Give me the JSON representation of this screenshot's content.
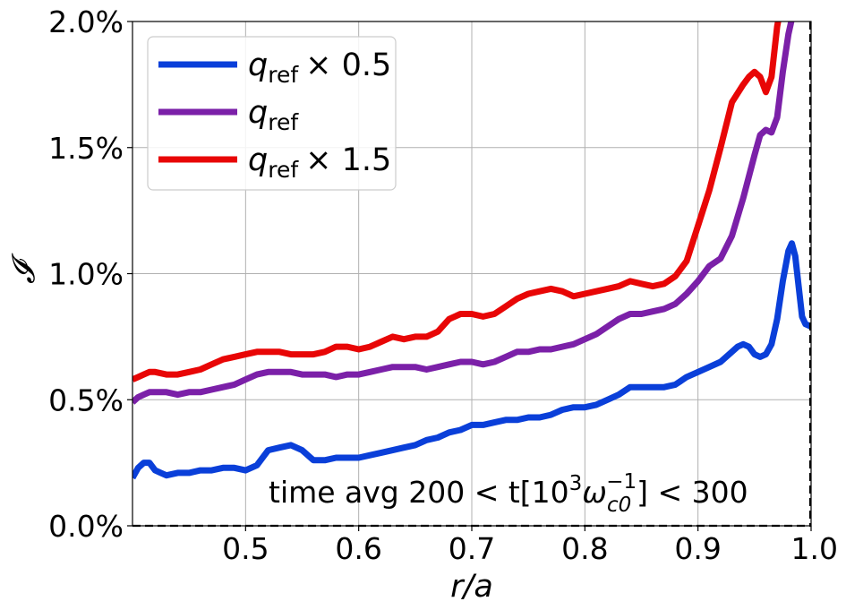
{
  "chart_data": {
    "type": "line",
    "xlabel": "r/a",
    "ylabel": "𝓘",
    "xlim": [
      0.4,
      1.0
    ],
    "ylim": [
      0.0,
      2.0
    ],
    "x_ticks": [
      "0.5",
      "0.6",
      "0.7",
      "0.8",
      "0.9",
      "1.0"
    ],
    "y_ticks": [
      "0.0%",
      "0.5%",
      "1.0%",
      "1.5%",
      "2.0%"
    ],
    "grid": true,
    "legend_position": "top-left",
    "annotation": {
      "prefix": "time avg 200 < t[10",
      "sup1": "3",
      "omega": "ω",
      "sub": "c0",
      "sup2": "−1",
      "suffix": "] < 300"
    },
    "series": [
      {
        "name": "q_ref × 0.5",
        "label_base": "q",
        "label_sub": "ref",
        "label_suffix": "× 0.5",
        "color": "#0a3fd9",
        "x": [
          0.4,
          0.405,
          0.41,
          0.415,
          0.42,
          0.425,
          0.43,
          0.44,
          0.45,
          0.46,
          0.47,
          0.48,
          0.49,
          0.5,
          0.51,
          0.52,
          0.53,
          0.54,
          0.55,
          0.56,
          0.57,
          0.58,
          0.59,
          0.6,
          0.61,
          0.62,
          0.63,
          0.64,
          0.65,
          0.66,
          0.67,
          0.68,
          0.69,
          0.7,
          0.71,
          0.72,
          0.73,
          0.74,
          0.75,
          0.76,
          0.77,
          0.78,
          0.79,
          0.8,
          0.81,
          0.82,
          0.83,
          0.84,
          0.85,
          0.86,
          0.87,
          0.88,
          0.89,
          0.9,
          0.91,
          0.92,
          0.93,
          0.935,
          0.94,
          0.945,
          0.95,
          0.955,
          0.96,
          0.965,
          0.97,
          0.975,
          0.98,
          0.983,
          0.986,
          0.989,
          0.992,
          0.995,
          1.0
        ],
        "y": [
          0.19,
          0.23,
          0.25,
          0.25,
          0.22,
          0.21,
          0.2,
          0.21,
          0.21,
          0.22,
          0.22,
          0.23,
          0.23,
          0.22,
          0.24,
          0.3,
          0.31,
          0.32,
          0.3,
          0.26,
          0.26,
          0.27,
          0.27,
          0.27,
          0.28,
          0.29,
          0.3,
          0.31,
          0.32,
          0.34,
          0.35,
          0.37,
          0.38,
          0.4,
          0.4,
          0.41,
          0.42,
          0.42,
          0.43,
          0.43,
          0.44,
          0.46,
          0.47,
          0.47,
          0.48,
          0.5,
          0.52,
          0.55,
          0.55,
          0.55,
          0.55,
          0.56,
          0.59,
          0.61,
          0.63,
          0.65,
          0.69,
          0.71,
          0.72,
          0.71,
          0.68,
          0.67,
          0.68,
          0.72,
          0.82,
          0.97,
          1.09,
          1.12,
          1.07,
          0.95,
          0.83,
          0.8,
          0.79
        ]
      },
      {
        "name": "q_ref",
        "label_base": "q",
        "label_sub": "ref",
        "label_suffix": "",
        "color": "#7b20a8",
        "x": [
          0.4,
          0.405,
          0.41,
          0.415,
          0.42,
          0.43,
          0.44,
          0.45,
          0.46,
          0.47,
          0.48,
          0.49,
          0.5,
          0.51,
          0.52,
          0.53,
          0.54,
          0.55,
          0.56,
          0.57,
          0.58,
          0.59,
          0.6,
          0.61,
          0.62,
          0.63,
          0.64,
          0.65,
          0.66,
          0.67,
          0.68,
          0.69,
          0.7,
          0.71,
          0.72,
          0.73,
          0.74,
          0.75,
          0.76,
          0.77,
          0.78,
          0.79,
          0.8,
          0.81,
          0.82,
          0.83,
          0.84,
          0.85,
          0.86,
          0.87,
          0.88,
          0.89,
          0.9,
          0.91,
          0.92,
          0.93,
          0.94,
          0.95,
          0.955,
          0.96,
          0.965,
          0.97,
          0.975,
          0.98,
          0.985
        ],
        "y": [
          0.49,
          0.51,
          0.52,
          0.53,
          0.53,
          0.53,
          0.52,
          0.53,
          0.53,
          0.54,
          0.55,
          0.56,
          0.58,
          0.6,
          0.61,
          0.61,
          0.61,
          0.6,
          0.6,
          0.6,
          0.59,
          0.6,
          0.6,
          0.61,
          0.62,
          0.63,
          0.63,
          0.63,
          0.62,
          0.63,
          0.64,
          0.65,
          0.65,
          0.64,
          0.65,
          0.67,
          0.69,
          0.69,
          0.7,
          0.7,
          0.71,
          0.72,
          0.74,
          0.76,
          0.79,
          0.82,
          0.84,
          0.84,
          0.85,
          0.86,
          0.88,
          0.92,
          0.97,
          1.03,
          1.06,
          1.15,
          1.3,
          1.47,
          1.55,
          1.57,
          1.56,
          1.62,
          1.8,
          1.95,
          2.05
        ]
      },
      {
        "name": "q_ref × 1.5",
        "label_base": "q",
        "label_sub": "ref",
        "label_suffix": "× 1.5",
        "color": "#e80606",
        "x": [
          0.4,
          0.405,
          0.41,
          0.415,
          0.42,
          0.43,
          0.44,
          0.45,
          0.46,
          0.47,
          0.48,
          0.49,
          0.5,
          0.51,
          0.52,
          0.53,
          0.54,
          0.55,
          0.56,
          0.57,
          0.58,
          0.59,
          0.6,
          0.61,
          0.62,
          0.63,
          0.64,
          0.65,
          0.66,
          0.67,
          0.68,
          0.69,
          0.7,
          0.71,
          0.72,
          0.73,
          0.74,
          0.75,
          0.76,
          0.77,
          0.78,
          0.79,
          0.8,
          0.81,
          0.82,
          0.83,
          0.84,
          0.85,
          0.86,
          0.87,
          0.88,
          0.89,
          0.9,
          0.91,
          0.92,
          0.93,
          0.94,
          0.945,
          0.95,
          0.955,
          0.96,
          0.965,
          0.97,
          0.975
        ],
        "y": [
          0.58,
          0.59,
          0.6,
          0.61,
          0.61,
          0.6,
          0.6,
          0.61,
          0.62,
          0.64,
          0.66,
          0.67,
          0.68,
          0.69,
          0.69,
          0.69,
          0.68,
          0.68,
          0.68,
          0.69,
          0.71,
          0.71,
          0.7,
          0.71,
          0.73,
          0.75,
          0.74,
          0.75,
          0.75,
          0.77,
          0.82,
          0.84,
          0.84,
          0.83,
          0.84,
          0.87,
          0.9,
          0.92,
          0.93,
          0.94,
          0.93,
          0.91,
          0.92,
          0.93,
          0.94,
          0.95,
          0.97,
          0.96,
          0.95,
          0.96,
          0.99,
          1.05,
          1.19,
          1.33,
          1.5,
          1.68,
          1.75,
          1.78,
          1.8,
          1.78,
          1.72,
          1.78,
          1.98,
          2.1
        ]
      }
    ]
  }
}
